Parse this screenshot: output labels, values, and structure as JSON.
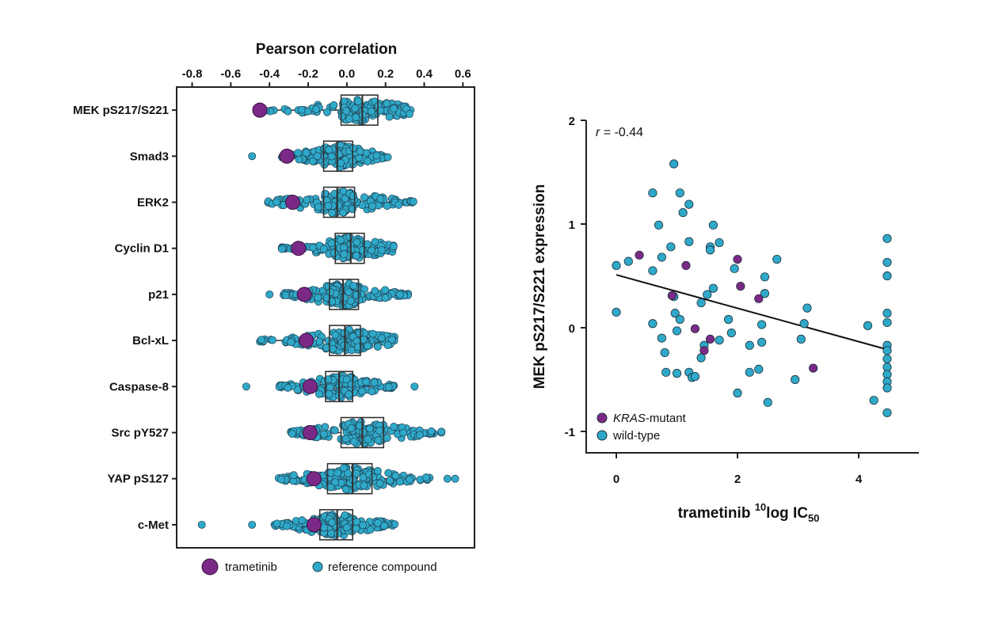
{
  "colors": {
    "trametinib": "#7a2a86",
    "reference": "#2fa9c9",
    "kras_mutant": "#7a2a86",
    "wild_type": "#2fa9c9",
    "axis": "#222222",
    "box": "#333333"
  },
  "chart_data": [
    {
      "type": "scatter",
      "subtype": "beeswarm-boxplot",
      "xlabel": "Pearson correlation",
      "xlim": [
        -0.88,
        0.66
      ],
      "xticks": [
        -0.8,
        -0.6,
        -0.4,
        -0.2,
        0.0,
        0.2,
        0.4,
        0.6
      ],
      "xtick_labels": [
        "-0.8",
        "-0.6",
        "-0.4",
        "-0.2",
        "0.0",
        "0.2",
        "0.4",
        "0.6"
      ],
      "categories": [
        "MEK pS217/S221",
        "Smad3",
        "ERK2",
        "Cyclin D1",
        "p21",
        "Bcl-xL",
        "Caspase-8",
        "Src pY527",
        "YAP pS127",
        "c-Met"
      ],
      "legend": [
        {
          "name": "trametinib",
          "color": "#7a2a86"
        },
        {
          "name": "reference compound",
          "color": "#2fa9c9"
        }
      ],
      "legend_placement": "bottom",
      "rows": [
        {
          "label": "MEK pS217/S221",
          "trametinib": -0.45,
          "q1": -0.03,
          "median": 0.08,
          "q3": 0.16,
          "lo": -0.43,
          "hi": 0.33,
          "outliers": []
        },
        {
          "label": "Smad3",
          "trametinib": -0.31,
          "q1": -0.12,
          "median": -0.05,
          "q3": 0.03,
          "lo": -0.34,
          "hi": 0.22,
          "outliers": [
            -0.49
          ]
        },
        {
          "label": "ERK2",
          "trametinib": -0.28,
          "q1": -0.12,
          "median": -0.05,
          "q3": 0.04,
          "lo": -0.41,
          "hi": 0.35,
          "outliers": []
        },
        {
          "label": "Cyclin D1",
          "trametinib": -0.25,
          "q1": -0.06,
          "median": 0.02,
          "q3": 0.09,
          "lo": -0.34,
          "hi": 0.25,
          "outliers": []
        },
        {
          "label": "p21",
          "trametinib": -0.22,
          "q1": -0.09,
          "median": -0.02,
          "q3": 0.06,
          "lo": -0.33,
          "hi": 0.32,
          "outliers": [
            -0.4
          ]
        },
        {
          "label": "Bcl-xL",
          "trametinib": -0.21,
          "q1": -0.09,
          "median": -0.01,
          "q3": 0.07,
          "lo": -0.45,
          "hi": 0.25,
          "outliers": []
        },
        {
          "label": "Caspase-8",
          "trametinib": -0.19,
          "q1": -0.11,
          "median": -0.04,
          "q3": 0.03,
          "lo": -0.35,
          "hi": 0.25,
          "outliers": [
            -0.52,
            0.35
          ]
        },
        {
          "label": "Src pY527",
          "trametinib": -0.19,
          "q1": -0.03,
          "median": 0.08,
          "q3": 0.19,
          "lo": -0.29,
          "hi": 0.49,
          "outliers": []
        },
        {
          "label": "YAP pS127",
          "trametinib": -0.17,
          "q1": -0.1,
          "median": 0.03,
          "q3": 0.13,
          "lo": -0.36,
          "hi": 0.43,
          "outliers": [
            0.52,
            0.56
          ]
        },
        {
          "label": "c-Met",
          "trametinib": -0.17,
          "q1": -0.14,
          "median": -0.05,
          "q3": 0.03,
          "lo": -0.38,
          "hi": 0.25,
          "outliers": [
            -0.75,
            -0.49
          ]
        }
      ]
    },
    {
      "type": "scatter",
      "xlabel_main": "trametinib ",
      "xlabel_sup": "10",
      "xlabel_mid": "log IC",
      "xlabel_sub": "50",
      "ylabel": "MEK pS217/S221 expression",
      "xlim": [
        -0.4,
        5.0
      ],
      "ylim": [
        -1.2,
        2.05
      ],
      "xticks": [
        0,
        2,
        4
      ],
      "xtick_labels": [
        "0",
        "2",
        "4"
      ],
      "yticks": [
        -1,
        0,
        1,
        2
      ],
      "ytick_labels": [
        "-1",
        "0",
        "1",
        "2"
      ],
      "annotation_r_label": "r",
      "annotation_r_value": " = -0.44",
      "legend": [
        {
          "name_italic": "KRAS",
          "name_rest": "-mutant",
          "color": "#7a2a86"
        },
        {
          "name_italic": "",
          "name_rest": "wild-type",
          "color": "#2fa9c9"
        }
      ],
      "legend_placement": "bottom-left",
      "fit_line": {
        "x": [
          0,
          4.47
        ],
        "y": [
          0.51,
          -0.21
        ]
      },
      "series": [
        {
          "name": "wild-type",
          "color": "#2fa9c9",
          "points": [
            [
              0.0,
              0.6
            ],
            [
              0.0,
              0.15
            ],
            [
              0.2,
              0.64
            ],
            [
              0.6,
              1.3
            ],
            [
              0.6,
              0.55
            ],
            [
              0.6,
              0.04
            ],
            [
              0.7,
              0.99
            ],
            [
              0.75,
              0.68
            ],
            [
              0.75,
              -0.1
            ],
            [
              0.8,
              -0.24
            ],
            [
              0.82,
              -0.43
            ],
            [
              0.9,
              0.78
            ],
            [
              0.95,
              1.58
            ],
            [
              0.95,
              0.3
            ],
            [
              0.97,
              0.14
            ],
            [
              1.0,
              -0.03
            ],
            [
              1.0,
              -0.44
            ],
            [
              1.05,
              0.08
            ],
            [
              1.05,
              1.3
            ],
            [
              1.1,
              1.11
            ],
            [
              1.2,
              1.19
            ],
            [
              1.2,
              0.83
            ],
            [
              1.2,
              -0.43
            ],
            [
              1.25,
              -0.48
            ],
            [
              1.3,
              -0.47
            ],
            [
              1.4,
              0.24
            ],
            [
              1.4,
              -0.29
            ],
            [
              1.45,
              -0.17
            ],
            [
              1.5,
              0.32
            ],
            [
              1.55,
              0.78
            ],
            [
              1.55,
              0.75
            ],
            [
              1.6,
              0.99
            ],
            [
              1.6,
              0.38
            ],
            [
              1.7,
              0.82
            ],
            [
              1.7,
              -0.12
            ],
            [
              1.85,
              0.08
            ],
            [
              1.9,
              -0.05
            ],
            [
              1.95,
              0.57
            ],
            [
              2.0,
              -0.63
            ],
            [
              2.2,
              -0.43
            ],
            [
              2.2,
              -0.17
            ],
            [
              2.35,
              -0.4
            ],
            [
              2.4,
              0.03
            ],
            [
              2.4,
              -0.14
            ],
            [
              2.45,
              0.33
            ],
            [
              2.45,
              0.49
            ],
            [
              2.5,
              -0.72
            ],
            [
              2.65,
              0.66
            ],
            [
              2.95,
              -0.5
            ],
            [
              3.05,
              -0.11
            ],
            [
              3.1,
              0.04
            ],
            [
              3.15,
              0.19
            ],
            [
              4.15,
              0.02
            ],
            [
              4.25,
              -0.7
            ],
            [
              4.47,
              0.86
            ],
            [
              4.47,
              0.63
            ],
            [
              4.47,
              0.5
            ],
            [
              4.47,
              0.14
            ],
            [
              4.47,
              0.05
            ],
            [
              4.47,
              -0.17
            ],
            [
              4.47,
              -0.22
            ],
            [
              4.47,
              -0.3
            ],
            [
              4.47,
              -0.38
            ],
            [
              4.47,
              -0.45
            ],
            [
              4.47,
              -0.52
            ],
            [
              4.47,
              -0.58
            ],
            [
              4.47,
              -0.82
            ]
          ]
        },
        {
          "name": "KRAS-mutant",
          "color": "#7a2a86",
          "points": [
            [
              0.38,
              0.7
            ],
            [
              0.92,
              0.31
            ],
            [
              1.15,
              0.6
            ],
            [
              1.3,
              -0.01
            ],
            [
              1.45,
              -0.22
            ],
            [
              1.55,
              -0.11
            ],
            [
              2.0,
              0.66
            ],
            [
              2.05,
              0.4
            ],
            [
              2.35,
              0.28
            ],
            [
              3.25,
              -0.39
            ]
          ]
        }
      ]
    }
  ]
}
